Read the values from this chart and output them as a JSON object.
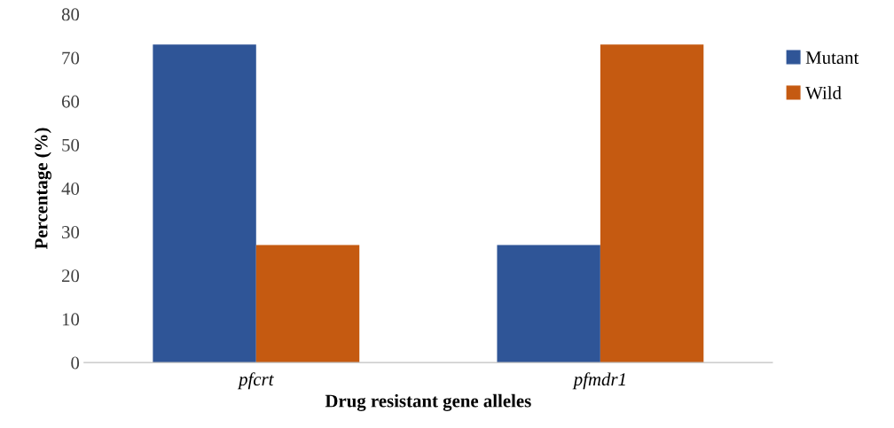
{
  "chart_data": {
    "type": "bar",
    "xlabel": "Drug resistant gene alleles",
    "ylabel": "Percentage (%)",
    "categories": [
      "pfcrt",
      "pfmdr1"
    ],
    "series": [
      {
        "name": "Mutant",
        "color": "#2f5597",
        "values": [
          73,
          27
        ]
      },
      {
        "name": "Wild",
        "color": "#c55a11",
        "values": [
          27,
          73
        ]
      }
    ],
    "ylim": [
      0,
      80
    ],
    "yticks": [
      0,
      10,
      20,
      30,
      40,
      50,
      60,
      70,
      80
    ],
    "grid": false,
    "legend": "right"
  }
}
